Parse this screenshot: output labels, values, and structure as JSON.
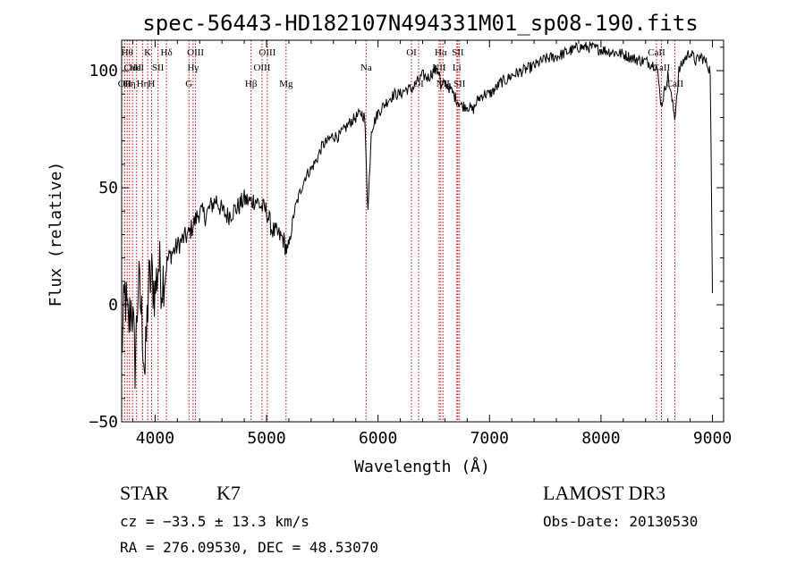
{
  "chart_data": {
    "type": "line",
    "title": "spec-56443-HD182107N494331M01_sp08-190.fits",
    "xlabel": "Wavelength (Å)",
    "ylabel": "Flux (relative)",
    "xlim": [
      3700,
      9100
    ],
    "ylim": [
      -50,
      113
    ],
    "x_ticks": [
      4000,
      5000,
      6000,
      7000,
      8000,
      9000
    ],
    "x_tick_labels": [
      "4000",
      "5000",
      "6000",
      "7000",
      "8000",
      "9000"
    ],
    "y_ticks": [
      -50,
      0,
      50,
      100
    ],
    "y_tick_labels": [
      "−50",
      "0",
      "50",
      "100"
    ],
    "grid": false,
    "series": [
      {
        "name": "flux",
        "x": [
          3700,
          3730,
          3760,
          3790,
          3820,
          3850,
          3880,
          3910,
          3940,
          3970,
          4000,
          4030,
          4060,
          4090,
          4120,
          4150,
          4200,
          4250,
          4300,
          4350,
          4400,
          4450,
          4500,
          4550,
          4600,
          4650,
          4700,
          4750,
          4800,
          4850,
          4900,
          4950,
          5000,
          5050,
          5100,
          5150,
          5190,
          5250,
          5300,
          5350,
          5400,
          5450,
          5500,
          5550,
          5590,
          5650,
          5700,
          5750,
          5800,
          5850,
          5880,
          5895,
          5910,
          5940,
          6000,
          6050,
          6100,
          6150,
          6200,
          6250,
          6300,
          6350,
          6400,
          6450,
          6500,
          6550,
          6563,
          6600,
          6650,
          6700,
          6750,
          6800,
          6850,
          6900,
          6950,
          7000,
          7050,
          7100,
          7150,
          7200,
          7300,
          7400,
          7500,
          7600,
          7700,
          7800,
          7900,
          8000,
          8100,
          8200,
          8300,
          8400,
          8500,
          8542,
          8600,
          8662,
          8700,
          8750,
          8800,
          8850,
          8900,
          8950,
          8980,
          9000
        ],
        "y": [
          -20,
          5,
          -10,
          2,
          -25,
          10,
          -5,
          -30,
          8,
          12,
          5,
          18,
          10,
          15,
          20,
          22,
          25,
          28,
          30,
          35,
          40,
          38,
          42,
          45,
          40,
          38,
          40,
          42,
          45,
          44,
          45,
          42,
          40,
          32,
          30,
          28,
          22,
          40,
          48,
          55,
          58,
          62,
          68,
          70,
          72,
          72,
          75,
          78,
          80,
          82,
          80,
          60,
          40,
          75,
          82,
          85,
          88,
          90,
          90,
          92,
          92,
          95,
          98,
          97,
          100,
          100,
          92,
          95,
          92,
          88,
          85,
          85,
          83,
          88,
          90,
          90,
          92,
          95,
          96,
          98,
          100,
          102,
          105,
          106,
          108,
          110,
          110,
          109,
          108,
          107,
          105,
          104,
          102,
          85,
          98,
          80,
          100,
          105,
          108,
          104,
          106,
          103,
          100,
          5
        ]
      }
    ],
    "lines": [
      {
        "wave": 3727,
        "label": "OII",
        "row": 2
      },
      {
        "wave": 3750,
        "label": "Hθ",
        "row": 0
      },
      {
        "wave": 3771,
        "label": "Hη",
        "row": 2
      },
      {
        "wave": 3798,
        "label": "CaII",
        "row": 1
      },
      {
        "wave": 3835,
        "label": "HeI",
        "row": 1
      },
      {
        "wave": 3889,
        "label": "Hη",
        "row": 2
      },
      {
        "wave": 3934,
        "label": "K",
        "row": 0
      },
      {
        "wave": 3968,
        "label": "H",
        "row": 2
      },
      {
        "wave": 4026,
        "label": "SII",
        "row": 1
      },
      {
        "wave": 4102,
        "label": "Hδ",
        "row": 0
      },
      {
        "wave": 4304,
        "label": "G",
        "row": 2
      },
      {
        "wave": 4341,
        "label": "Hγ",
        "row": 1
      },
      {
        "wave": 4363,
        "label": "OIII",
        "row": 0
      },
      {
        "wave": 4861,
        "label": "Hβ",
        "row": 2
      },
      {
        "wave": 4959,
        "label": "OIII",
        "row": 1
      },
      {
        "wave": 5007,
        "label": "OIII",
        "row": 0
      },
      {
        "wave": 5175,
        "label": "Mg",
        "row": 2
      },
      {
        "wave": 5893,
        "label": "Na",
        "row": 1
      },
      {
        "wave": 6300,
        "label": "OI",
        "row": 0
      },
      {
        "wave": 6364,
        "label": "OI",
        "row": 2
      },
      {
        "wave": 6548,
        "label": "NII",
        "row": 1
      },
      {
        "wave": 6563,
        "label": "Hα",
        "row": 0
      },
      {
        "wave": 6583,
        "label": "NII",
        "row": 2
      },
      {
        "wave": 6707,
        "label": "Li",
        "row": 1
      },
      {
        "wave": 6716,
        "label": "SII",
        "row": 0
      },
      {
        "wave": 6731,
        "label": "SII",
        "row": 2
      },
      {
        "wave": 8498,
        "label": "CaII",
        "row": 0
      },
      {
        "wave": 8542,
        "label": "CaII",
        "row": 1
      },
      {
        "wave": 8662,
        "label": "CaII",
        "row": 2
      }
    ]
  },
  "footer": {
    "object_class": "STAR",
    "subclass": "K7",
    "survey": "LAMOST DR3",
    "redshift": "cz = −33.5 ± 13.3 km/s",
    "obs_date": "Obs-Date: 20130530",
    "coords": "RA = 276.09530, DEC =  48.53070"
  }
}
